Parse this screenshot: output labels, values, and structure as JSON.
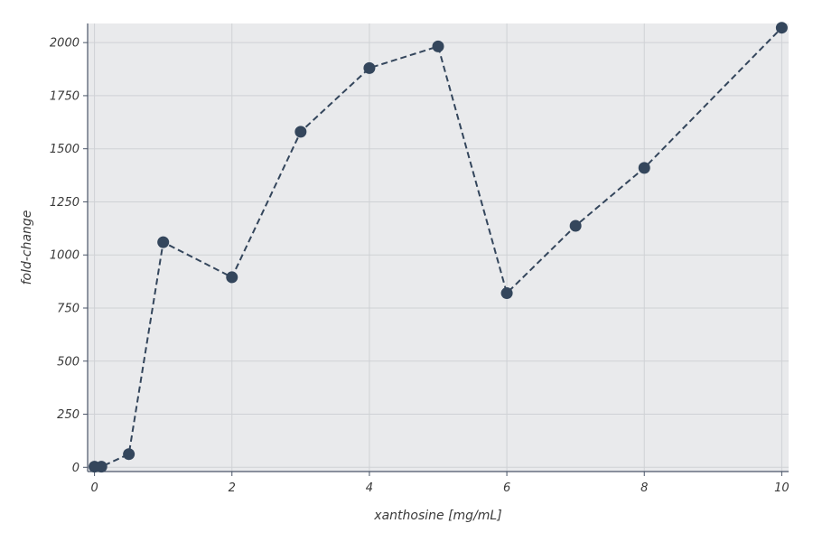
{
  "colors": {
    "plot_background": "#e9eaec",
    "grid": "#cfd1d5",
    "axis": "#4a5568",
    "series": "#34465c"
  },
  "chart_data": {
    "type": "line",
    "title": "",
    "xlabel": "xanthosine [mg/mL]",
    "ylabel": "fold-change",
    "xlim": [
      -0.1,
      10.1
    ],
    "ylim": [
      -20,
      2090
    ],
    "x_ticks": [
      0,
      2,
      4,
      6,
      8,
      10
    ],
    "y_ticks": [
      0,
      250,
      500,
      750,
      1000,
      1250,
      1500,
      1750,
      2000
    ],
    "grid": true,
    "series": [
      {
        "line_style": "dashed",
        "marker": "circle",
        "x": [
          0,
          0.1,
          0.5,
          1,
          2,
          3,
          4,
          5,
          6,
          7,
          8,
          10
        ],
        "y": [
          3,
          3,
          62,
          1060,
          895,
          1580,
          1880,
          1982,
          820,
          1137,
          1410,
          2070
        ]
      }
    ]
  }
}
